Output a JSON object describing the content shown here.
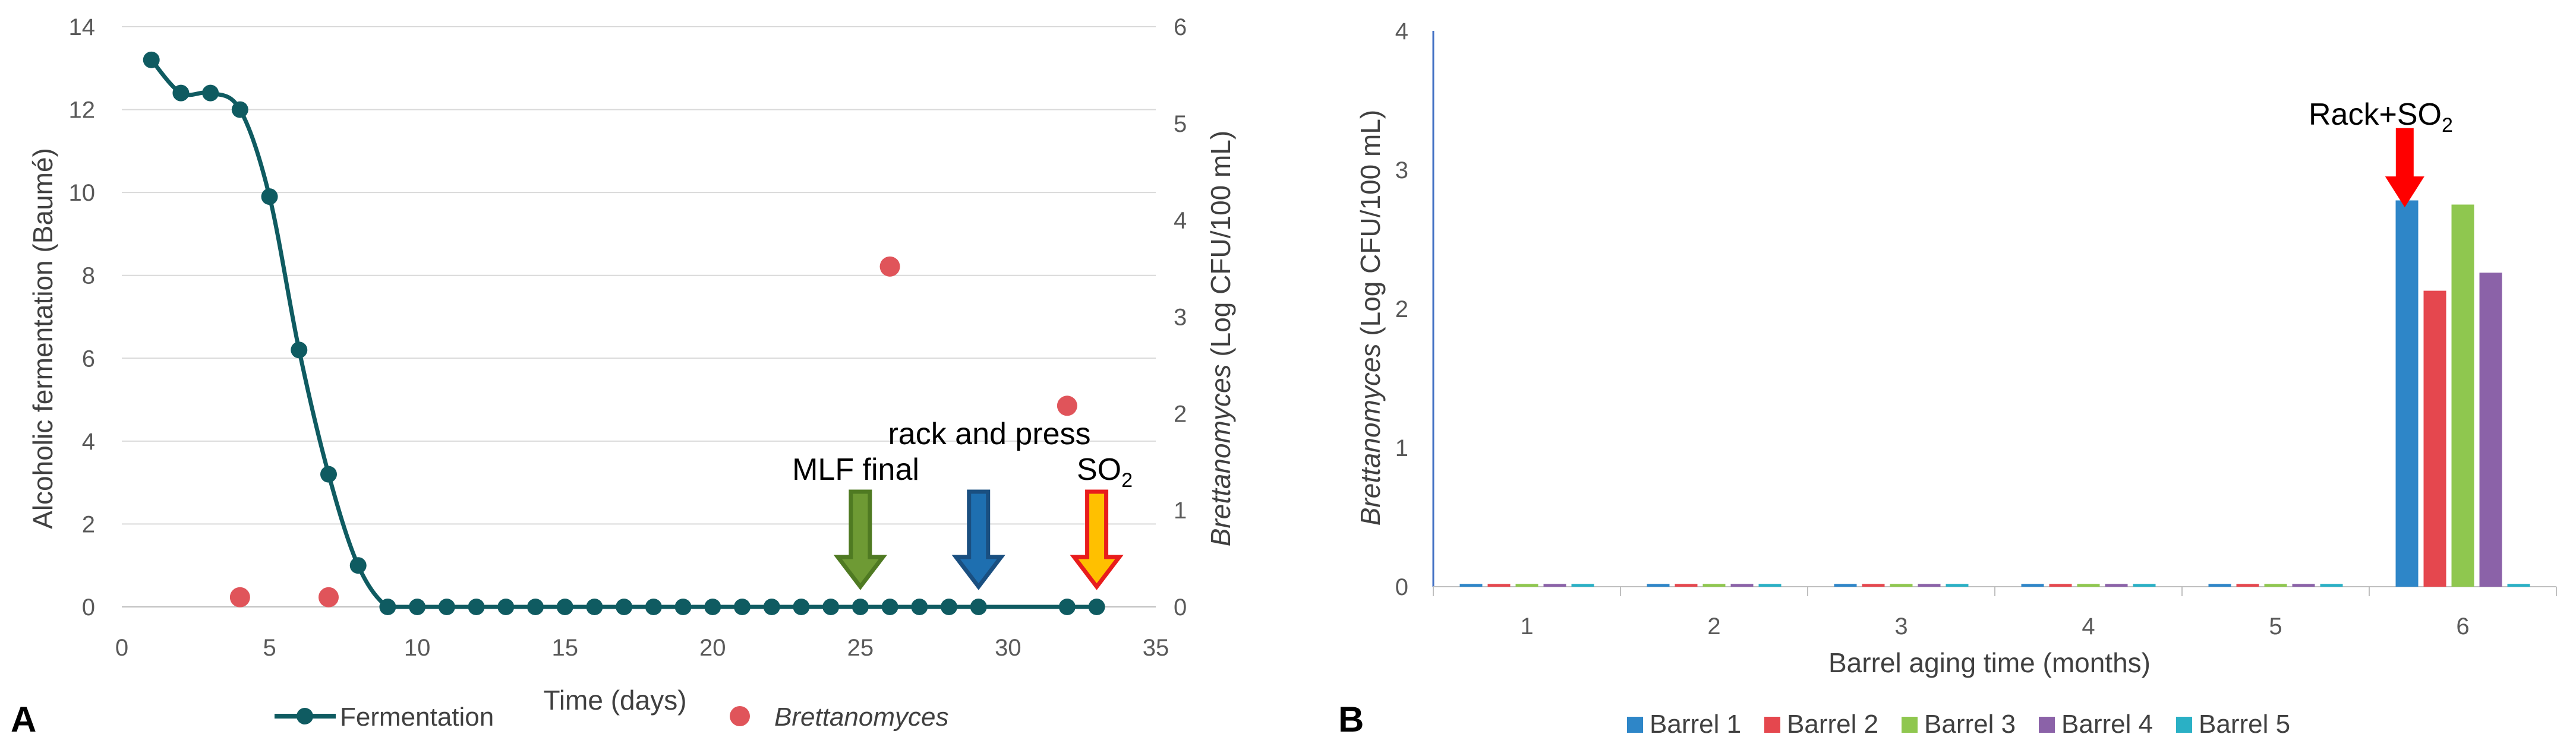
{
  "chart_data": [
    {
      "panel": "A",
      "type": "line",
      "xlabel": "Time (days)",
      "ylabel": "Alcoholic fermentation (Baumé)",
      "y2label_italic": "Brettanomyces",
      "y2label_rest": " (Log CFU/100 mL)",
      "xlim": [
        0,
        35
      ],
      "ylim": [
        0,
        14
      ],
      "y2lim": [
        0,
        6
      ],
      "xticks": [
        "0",
        "5",
        "10",
        "15",
        "20",
        "25",
        "30",
        "35"
      ],
      "yticks": [
        "0",
        "2",
        "4",
        "6",
        "8",
        "10",
        "12",
        "14"
      ],
      "y2ticks": [
        "0",
        "1",
        "2",
        "3",
        "4",
        "5",
        "6"
      ],
      "grid": true,
      "series": [
        {
          "name": "Fermentation",
          "axis": "left",
          "color": "#0F5B61",
          "x": [
            1,
            2,
            3,
            4,
            5,
            6,
            7,
            8,
            9,
            10,
            11,
            12,
            13,
            14,
            15,
            16,
            17,
            18,
            19,
            20,
            21,
            22,
            23,
            24,
            25,
            26,
            27,
            28,
            29,
            32,
            33
          ],
          "y": [
            13.2,
            12.4,
            12.4,
            12.0,
            9.9,
            6.2,
            3.2,
            1.0,
            0,
            0,
            0,
            0,
            0,
            0,
            0,
            0,
            0,
            0,
            0,
            0,
            0,
            0,
            0,
            0,
            0,
            0,
            0,
            0,
            0,
            0,
            0
          ]
        },
        {
          "name": "Brettanomyces",
          "axis": "right",
          "color": "#E0545A",
          "x": [
            4,
            7,
            26,
            32
          ],
          "y": [
            0.1,
            0.1,
            3.52,
            2.08
          ]
        }
      ],
      "annotations": [
        {
          "label": "MLF final",
          "x": 25,
          "color": "#6E9A34",
          "fill": "#6E9A34"
        },
        {
          "label": "rack and press",
          "x": 29,
          "color": "#1E6FB0",
          "fill": "#1E6FB0"
        },
        {
          "label_main": "SO",
          "label_sub": "2",
          "x": 33,
          "color": "#E81C1C",
          "fill": "#FFC000"
        }
      ],
      "legend": {
        "position": "bottom",
        "fermentation_label": "Fermentation",
        "brett_label": "Brettanomyces"
      }
    },
    {
      "panel": "B",
      "type": "bar",
      "xlabel": "Barrel aging time (months)",
      "ylabel_italic": "Brettanomyces",
      "ylabel_rest": " (Log CFU/100 mL)",
      "categories": [
        "1",
        "2",
        "3",
        "4",
        "5",
        "6"
      ],
      "ylim": [
        0,
        4
      ],
      "yticks": [
        "0",
        "1",
        "2",
        "3",
        "4"
      ],
      "series": [
        {
          "name": "Barrel 1",
          "color": "#2E86C8",
          "values": [
            0.02,
            0.02,
            0.02,
            0.02,
            0.02,
            2.78
          ]
        },
        {
          "name": "Barrel 2",
          "color": "#E5474E",
          "values": [
            0.02,
            0.02,
            0.02,
            0.02,
            0.02,
            2.13
          ]
        },
        {
          "name": "Barrel 3",
          "color": "#8FC74F",
          "values": [
            0.02,
            0.02,
            0.02,
            0.02,
            0.02,
            2.75
          ]
        },
        {
          "name": "Barrel 4",
          "color": "#8B62A8",
          "values": [
            0.02,
            0.02,
            0.02,
            0.02,
            0.02,
            2.26
          ]
        },
        {
          "name": "Barrel 5",
          "color": "#2AB0C5",
          "values": [
            0.02,
            0.02,
            0.02,
            0.02,
            0.02,
            0.02
          ]
        }
      ],
      "annotation": {
        "label_main": "Rack+SO",
        "label_sub": "2",
        "color": "#FF0000",
        "between": [
          "5",
          "6"
        ]
      },
      "legend": {
        "position": "bottom"
      }
    }
  ],
  "panel_labels": [
    "A",
    "B"
  ]
}
